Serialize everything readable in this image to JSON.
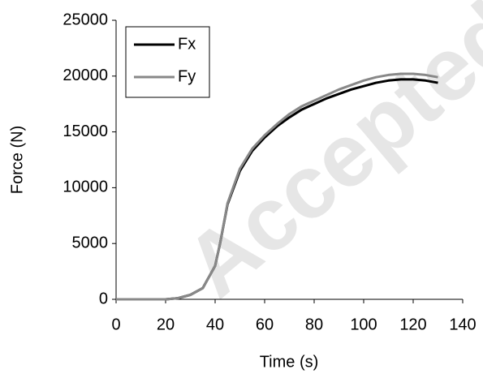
{
  "chart_data": {
    "type": "line",
    "x_label": "Time (s)",
    "y_label": "Force (N)",
    "watermark": "Accepted",
    "x": [
      0,
      5,
      10,
      15,
      20,
      25,
      30,
      35,
      40,
      42,
      45,
      50,
      55,
      60,
      65,
      70,
      75,
      80,
      85,
      90,
      95,
      100,
      105,
      110,
      115,
      120,
      125,
      130
    ],
    "series": [
      {
        "name": "Fx",
        "color": "#000000",
        "values": [
          0,
          0,
          0,
          0,
          0,
          100,
          400,
          1000,
          3000,
          5000,
          8500,
          11500,
          13300,
          14500,
          15500,
          16300,
          17000,
          17500,
          18000,
          18400,
          18800,
          19100,
          19400,
          19600,
          19700,
          19700,
          19600,
          19400
        ]
      },
      {
        "name": "Fy",
        "color": "#888888",
        "values": [
          0,
          0,
          0,
          0,
          0,
          100,
          400,
          1000,
          3000,
          5000,
          8600,
          11700,
          13500,
          14700,
          15700,
          16600,
          17300,
          17800,
          18300,
          18800,
          19200,
          19600,
          19900,
          20100,
          20200,
          20200,
          20100,
          19900
        ]
      }
    ],
    "xlim": [
      0,
      140
    ],
    "xticks": [
      0,
      20,
      40,
      60,
      80,
      100,
      120,
      140
    ],
    "ylim": [
      0,
      25000
    ],
    "yticks": [
      0,
      5000,
      10000,
      15000,
      20000,
      25000
    ],
    "legend": "top-left",
    "grid": false
  }
}
